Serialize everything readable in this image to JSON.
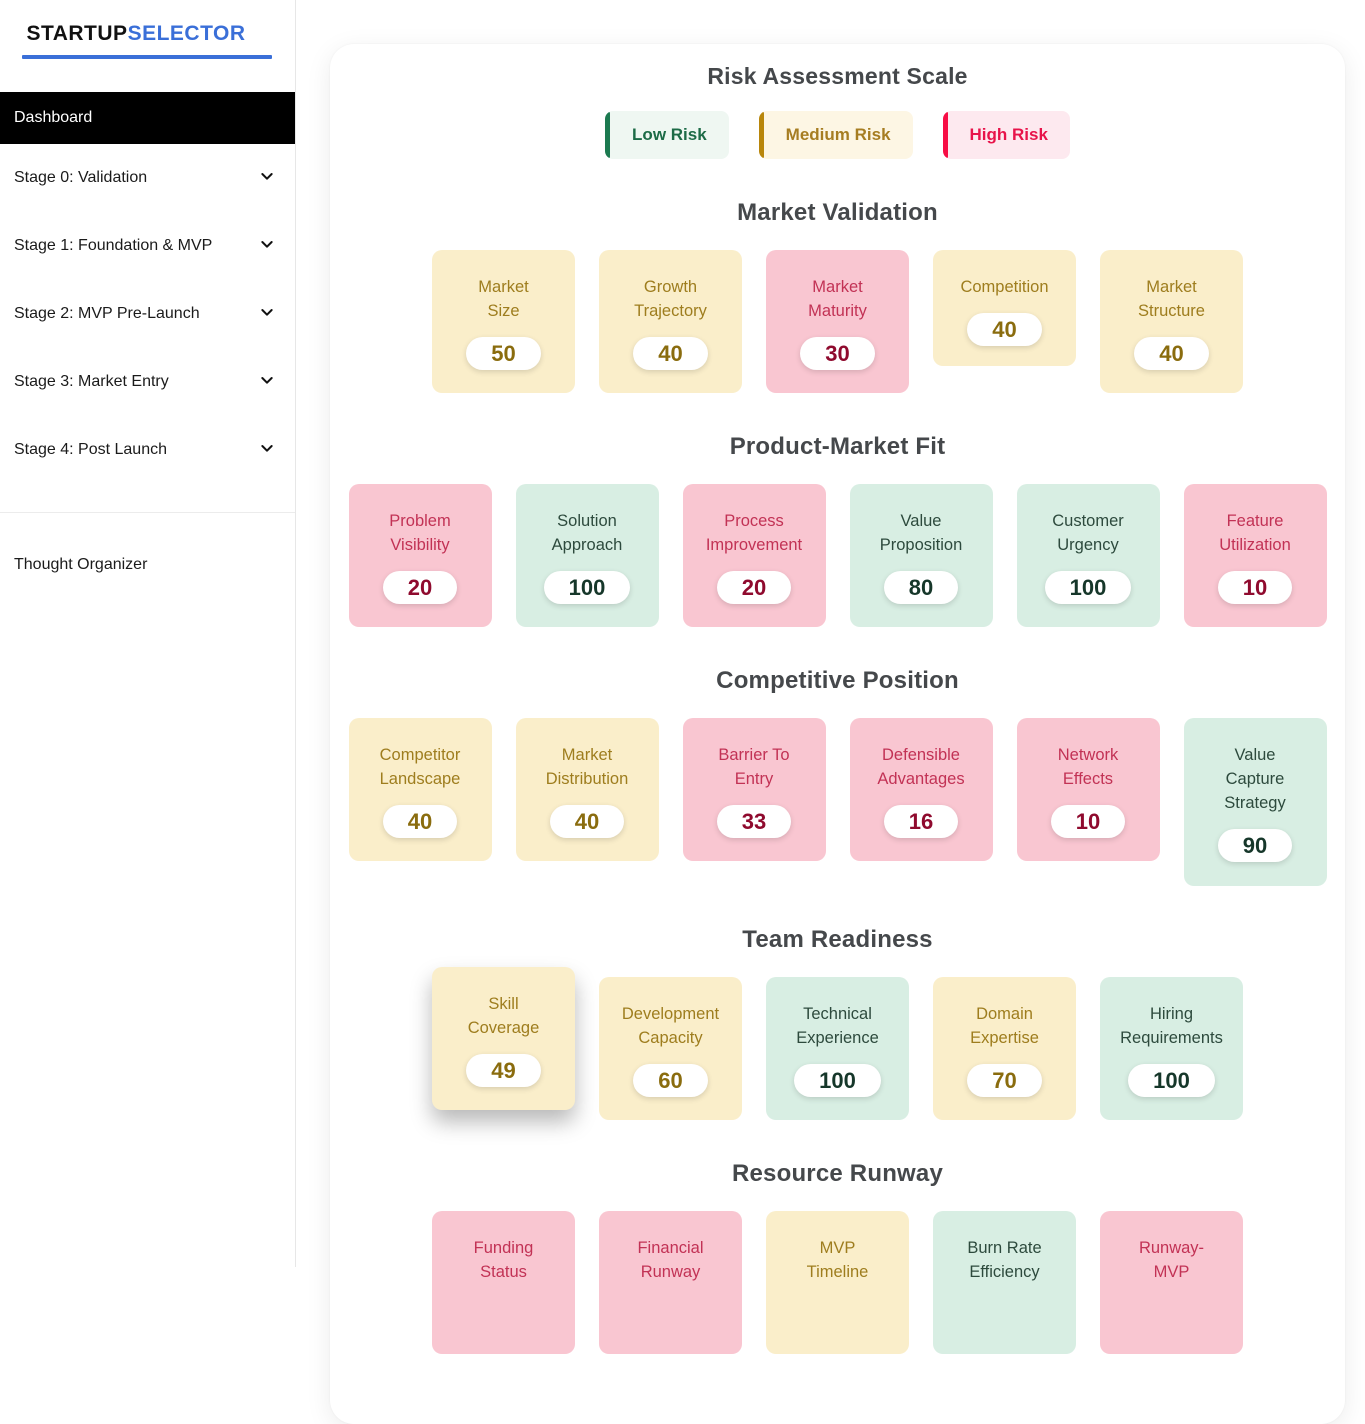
{
  "sidebar": {
    "logo": {
      "part1": "STARTUP",
      "part2": "SELECTOR"
    },
    "active_item": "Dashboard",
    "items": [
      {
        "label": "Stage 0: Validation"
      },
      {
        "label": "Stage 1: Foundation & MVP"
      },
      {
        "label": "Stage 2: MVP Pre-Launch"
      },
      {
        "label": "Stage 3: Market Entry"
      },
      {
        "label": "Stage 4: Post Launch"
      }
    ],
    "footer_item": "Thought Organizer"
  },
  "legend": {
    "title": "Risk Assessment Scale",
    "items": [
      {
        "label": "Low Risk",
        "risk": "low"
      },
      {
        "label": "Medium Risk",
        "risk": "medium"
      },
      {
        "label": "High Risk",
        "risk": "high"
      }
    ]
  },
  "colors": {
    "accent_blue": "#3a6fd8",
    "heading_text": "#45484b",
    "low_bar": "#1c7a50",
    "low_bg": "#eff7f2",
    "low_text": "#1d6b47",
    "medium_bar": "#b8860b",
    "medium_bg": "#fdf6e4",
    "medium_text": "#a67d22",
    "high_bar": "#f70d45",
    "high_bg": "#fde9ef",
    "high_text": "#e8134a",
    "card_medium_bg": "#faeeca",
    "card_medium_label": "#9e7d1e",
    "card_medium_value": "#8a6c0e",
    "card_high_bg": "#f9c6d1",
    "card_high_label": "#c23255",
    "card_high_value": "#8f0a2e",
    "card_low_bg": "#d8eee3",
    "card_low_label": "#2d4a3d",
    "card_low_value": "#16372a"
  },
  "sections": [
    {
      "title": "Market Validation",
      "cards": [
        {
          "label_lines": [
            "Market",
            "Size"
          ],
          "value": "50",
          "risk": "medium"
        },
        {
          "label_lines": [
            "Growth",
            "Trajectory"
          ],
          "value": "40",
          "risk": "medium"
        },
        {
          "label_lines": [
            "Market",
            "Maturity"
          ],
          "value": "30",
          "risk": "high"
        },
        {
          "label_lines": [
            "Competition"
          ],
          "value": "40",
          "risk": "medium"
        },
        {
          "label_lines": [
            "Market",
            "Structure"
          ],
          "value": "40",
          "risk": "medium"
        }
      ]
    },
    {
      "title": "Product-Market Fit",
      "cards": [
        {
          "label_lines": [
            "Problem",
            "Visibility"
          ],
          "value": "20",
          "risk": "high"
        },
        {
          "label_lines": [
            "Solution",
            "Approach"
          ],
          "value": "100",
          "risk": "low"
        },
        {
          "label_lines": [
            "Process",
            "Improvement"
          ],
          "value": "20",
          "risk": "high"
        },
        {
          "label_lines": [
            "Value",
            "Proposition"
          ],
          "value": "80",
          "risk": "low"
        },
        {
          "label_lines": [
            "Customer",
            "Urgency"
          ],
          "value": "100",
          "risk": "low"
        },
        {
          "label_lines": [
            "Feature",
            "Utilization"
          ],
          "value": "10",
          "risk": "high"
        }
      ]
    },
    {
      "title": "Competitive Position",
      "cards": [
        {
          "label_lines": [
            "Competitor",
            "Landscape"
          ],
          "value": "40",
          "risk": "medium"
        },
        {
          "label_lines": [
            "Market",
            "Distribution"
          ],
          "value": "40",
          "risk": "medium"
        },
        {
          "label_lines": [
            "Barrier To",
            "Entry"
          ],
          "value": "33",
          "risk": "high"
        },
        {
          "label_lines": [
            "Defensible",
            "Advantages"
          ],
          "value": "16",
          "risk": "high"
        },
        {
          "label_lines": [
            "Network",
            "Effects"
          ],
          "value": "10",
          "risk": "high"
        },
        {
          "label_lines": [
            "Value",
            "Capture",
            "Strategy"
          ],
          "value": "90",
          "risk": "low"
        }
      ]
    },
    {
      "title": "Team Readiness",
      "cards": [
        {
          "label_lines": [
            "Skill",
            "Coverage"
          ],
          "value": "49",
          "risk": "medium",
          "elevated": true
        },
        {
          "label_lines": [
            "Development",
            "Capacity"
          ],
          "value": "60",
          "risk": "medium"
        },
        {
          "label_lines": [
            "Technical",
            "Experience"
          ],
          "value": "100",
          "risk": "low"
        },
        {
          "label_lines": [
            "Domain",
            "Expertise"
          ],
          "value": "70",
          "risk": "medium"
        },
        {
          "label_lines": [
            "Hiring",
            "Requirements"
          ],
          "value": "100",
          "risk": "low"
        }
      ]
    },
    {
      "title": "Resource Runway",
      "cards": [
        {
          "label_lines": [
            "Funding",
            "Status"
          ],
          "value": null,
          "risk": "high"
        },
        {
          "label_lines": [
            "Financial",
            "Runway"
          ],
          "value": null,
          "risk": "high"
        },
        {
          "label_lines": [
            "MVP",
            "Timeline"
          ],
          "value": null,
          "risk": "medium"
        },
        {
          "label_lines": [
            "Burn Rate",
            "Efficiency"
          ],
          "value": null,
          "risk": "low"
        },
        {
          "label_lines": [
            "Runway-",
            "MVP"
          ],
          "value": null,
          "risk": "high"
        }
      ]
    }
  ]
}
